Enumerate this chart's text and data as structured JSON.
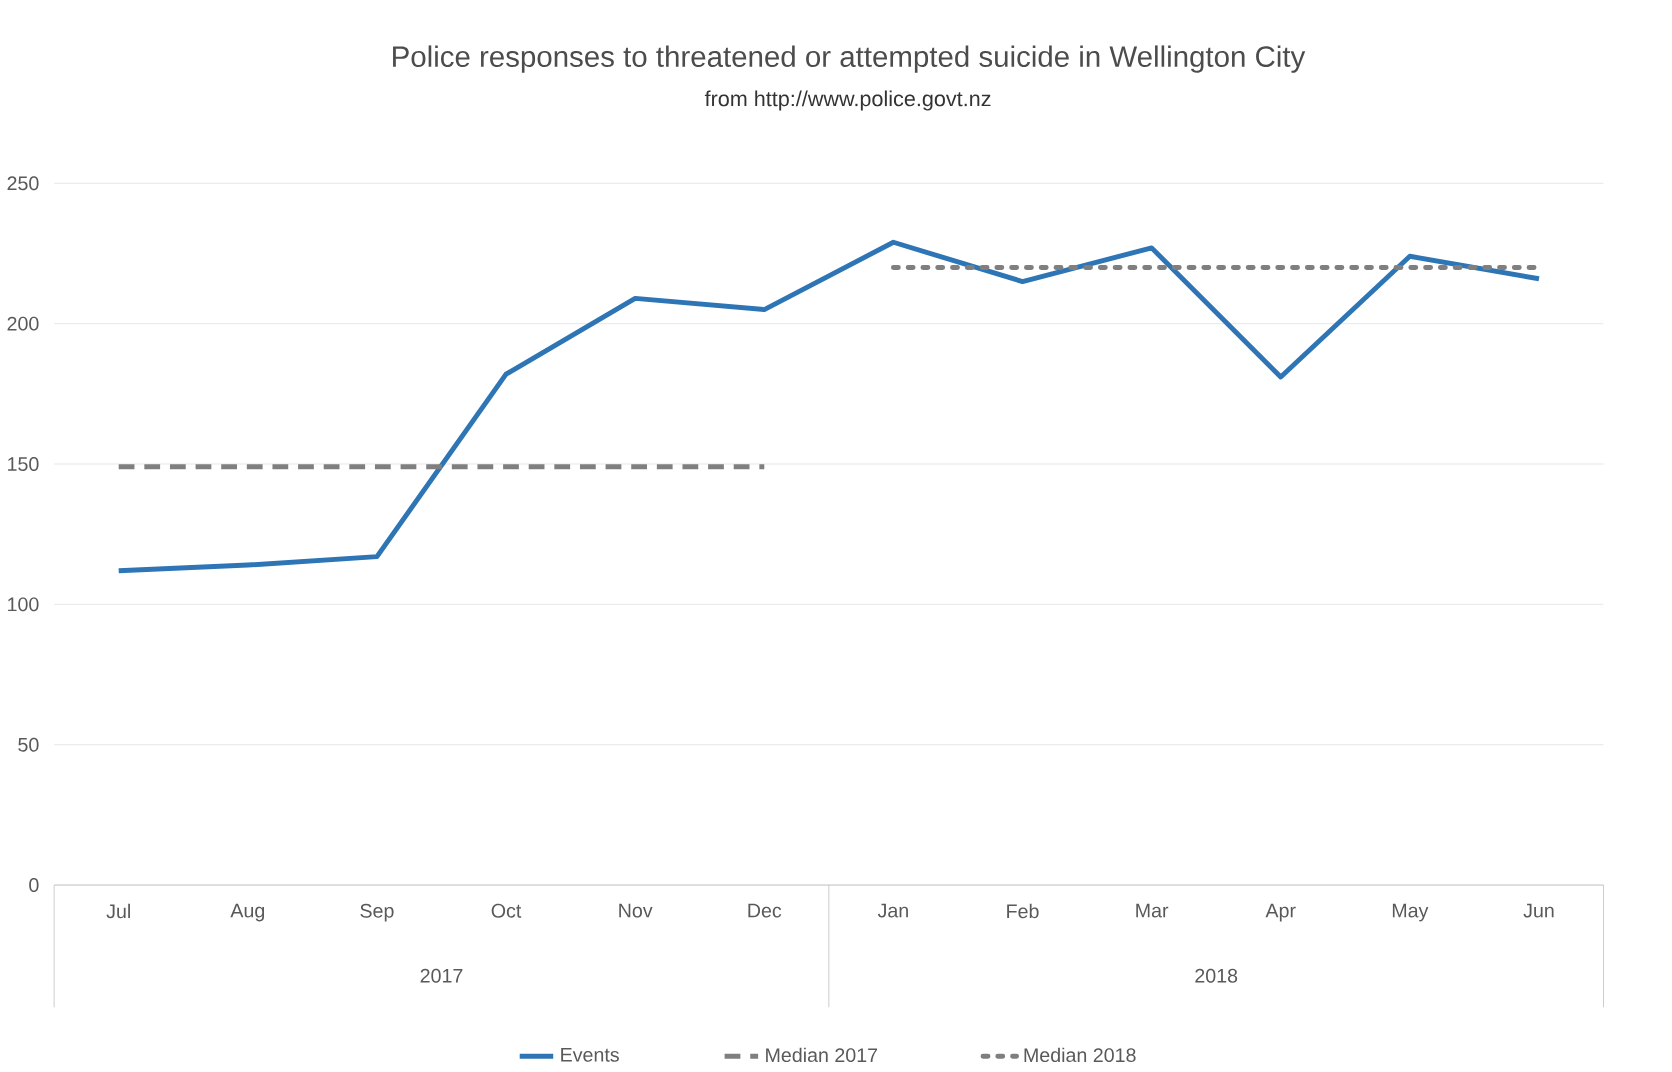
{
  "chart_data": {
    "type": "line",
    "title": "Police responses to threatened or attempted suicide in Wellington City",
    "subtitle": "from http://www.police.govt.nz",
    "categories": [
      "Jul",
      "Aug",
      "Sep",
      "Oct",
      "Nov",
      "Dec",
      "Jan",
      "Feb",
      "Mar",
      "Apr",
      "May",
      "Jun"
    ],
    "series": [
      {
        "name": "Events",
        "color": "#2e75b6",
        "line_style": "solid",
        "values": [
          112,
          114,
          117,
          182,
          209,
          205,
          229,
          215,
          227,
          181,
          224,
          216
        ]
      },
      {
        "name": "Median 2017",
        "color": "#7f7f7f",
        "line_style": "dashed",
        "values": [
          149,
          149,
          149,
          149,
          149,
          149,
          null,
          null,
          null,
          null,
          null,
          null
        ]
      },
      {
        "name": "Median 2018",
        "color": "#7f7f7f",
        "line_style": "dotted",
        "values": [
          null,
          null,
          null,
          null,
          null,
          null,
          220,
          220,
          220,
          220,
          220,
          220
        ]
      }
    ],
    "annotations": [
      "2017",
      "2018"
    ],
    "ylim": [
      0,
      250
    ],
    "yticks": [
      0,
      50,
      100,
      150,
      200,
      250
    ],
    "grid": "y",
    "legend": "bottom",
    "marker": "none"
  }
}
